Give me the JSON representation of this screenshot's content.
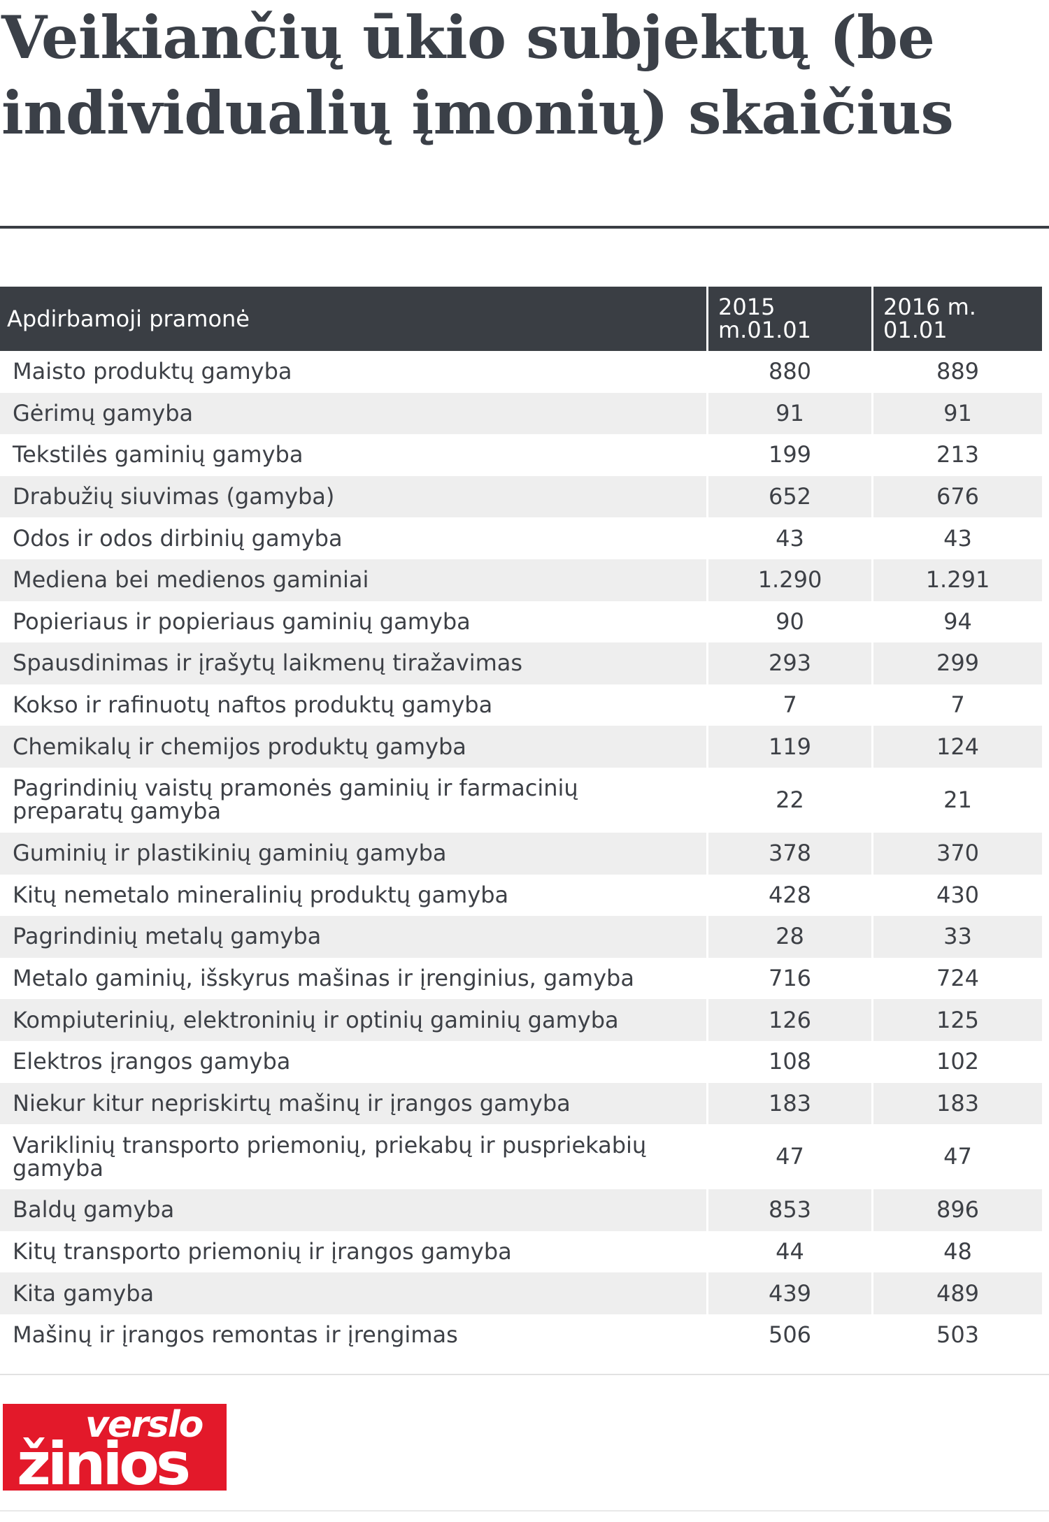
{
  "title": "Veikiančių ūkio subjektų (be individualių įmonių) skaičius",
  "table": {
    "headers": [
      "Apdirbamoji pramonė",
      "2015 m.01.01",
      "2016 m. 01.01"
    ],
    "rows": [
      [
        "Maisto produktų gamyba",
        "880",
        "889"
      ],
      [
        "Gėrimų gamyba",
        "91",
        "91"
      ],
      [
        "Tekstilės gaminių gamyba",
        "199",
        "213"
      ],
      [
        "Drabužių siuvimas (gamyba)",
        "652",
        "676"
      ],
      [
        "Odos ir odos dirbinių gamyba",
        "43",
        "43"
      ],
      [
        "Mediena bei medienos gaminiai",
        "1.290",
        "1.291"
      ],
      [
        "Popieriaus ir popieriaus gaminių gamyba",
        "90",
        "94"
      ],
      [
        "Spausdinimas ir įrašytų laikmenų tiražavimas",
        "293",
        "299"
      ],
      [
        "Kokso ir rafinuotų naftos produktų gamyba",
        "7",
        "7"
      ],
      [
        "Chemikalų ir chemijos produktų gamyba",
        "119",
        "124"
      ],
      [
        "Pagrindinių vaistų pramonės gaminių ir farmacinių preparatų gamyba",
        "22",
        "21"
      ],
      [
        "Guminių ir plastikinių gaminių gamyba",
        "378",
        "370"
      ],
      [
        "Kitų nemetalo mineralinių produktų gamyba",
        "428",
        "430"
      ],
      [
        "Pagrindinių metalų gamyba",
        "28",
        "33"
      ],
      [
        "Metalo gaminių, išskyrus mašinas ir įrenginius, gamyba",
        "716",
        "724"
      ],
      [
        "Kompiuterinių, elektroninių ir optinių gaminių gamyba",
        "126",
        "125"
      ],
      [
        "Elektros įrangos gamyba",
        "108",
        "102"
      ],
      [
        "Niekur kitur nepriskirtų mašinų ir įrangos gamyba",
        "183",
        "183"
      ],
      [
        "Variklinių transporto priemonių, priekabų ir puspriekabių gamyba",
        "47",
        "47"
      ],
      [
        "Baldų gamyba",
        "853",
        "896"
      ],
      [
        "Kitų transporto priemonių ir įrangos gamyba",
        "44",
        "48"
      ],
      [
        "Kita gamyba",
        "439",
        "489"
      ],
      [
        "Mašinų ir įrangos remontas ir įrengimas",
        "506",
        "503"
      ]
    ]
  },
  "logo": {
    "line1": "verslo",
    "line2": "žinios",
    "color": "#e3192a"
  }
}
